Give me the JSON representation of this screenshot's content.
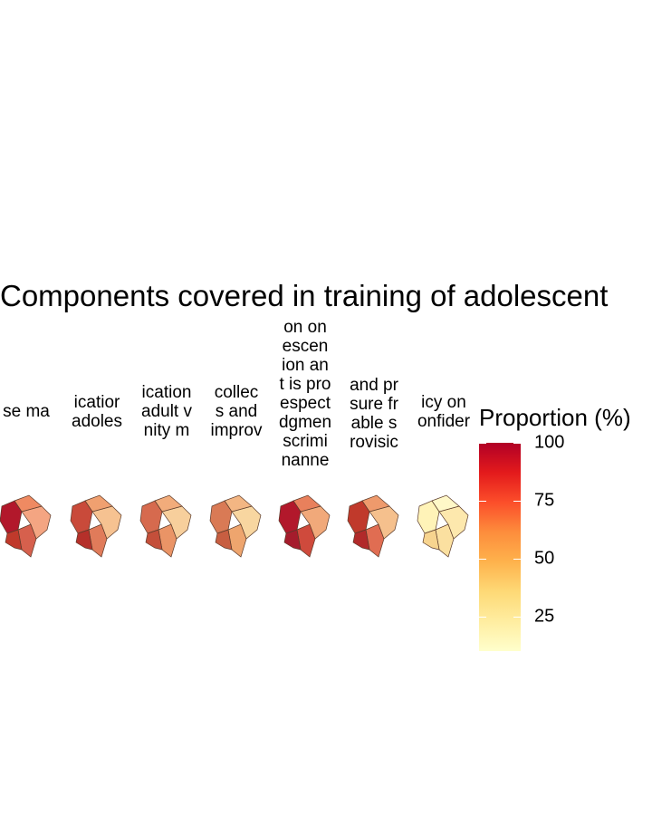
{
  "chart_data": {
    "type": "choropleth-facets",
    "title": "Components covered in training of adolescent",
    "panels": [
      {
        "strip_lines": [
          "se ma"
        ]
      },
      {
        "strip_lines": [
          "icatior",
          "adoles"
        ]
      },
      {
        "strip_lines": [
          "ication",
          "adult v",
          "nity m"
        ]
      },
      {
        "strip_lines": [
          "collec",
          "s and",
          "improv"
        ]
      },
      {
        "strip_lines": [
          "on on",
          "escen",
          "ion an",
          "t is pro",
          "espect",
          "dgmen",
          "scrimi",
          "nanne"
        ]
      },
      {
        "strip_lines": [
          "and pr",
          "sure fr",
          "able s",
          "rovisic"
        ]
      },
      {
        "strip_lines": [
          "icy on",
          "onfider"
        ]
      }
    ],
    "legend": {
      "title": "Proportion (%)",
      "ticks": [
        "100",
        "75",
        "50",
        "25"
      ],
      "tick_values": [
        100,
        75,
        50,
        25
      ],
      "min": 10,
      "max": 100,
      "palette": [
        "#ffffcc",
        "#ffeda0",
        "#fed976",
        "#feb24c",
        "#fd8d3c",
        "#fc4e2a",
        "#e31a1c",
        "#b10026"
      ]
    }
  }
}
